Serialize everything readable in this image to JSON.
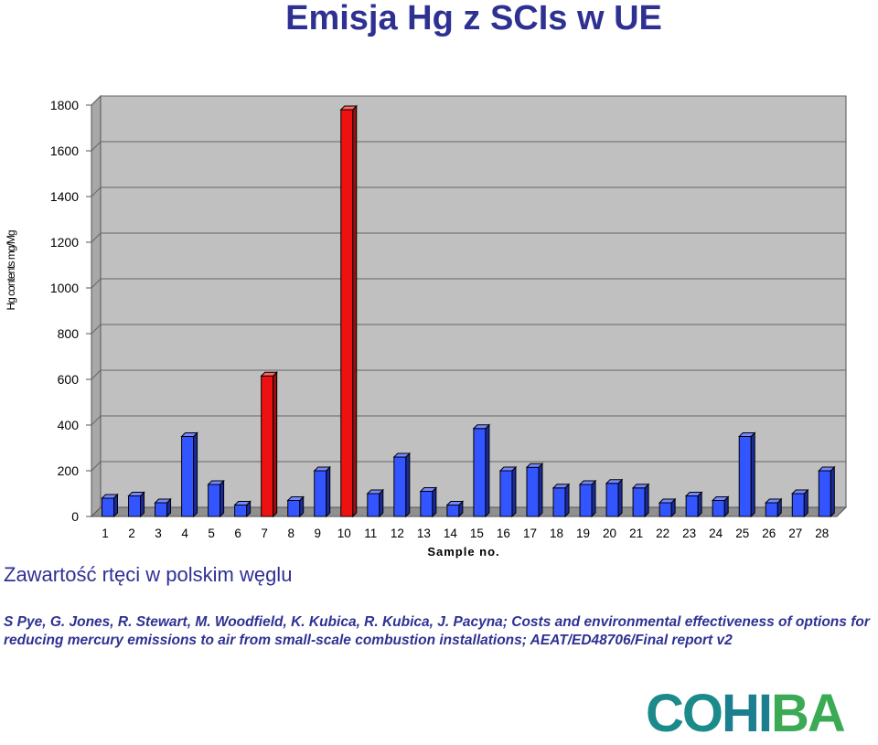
{
  "title": "Emisja Hg z SCIs w UE",
  "subtitle": "Zawartość rtęci w polskim węglu",
  "citation": "S Pye, G. Jones, R. Stewart, M. Woodfield, K. Kubica, R. Kubica, J. Pacyna; Costs and environmental effectiveness of options for reducing mercury emissions to air from small-scale combustion installations; AEAT/ED48706/Final report v2",
  "logo_text": "COHIBA",
  "colors": {
    "title": "#2e3192",
    "bar_default": "#3355ff",
    "bar_highlight": "#ee1111",
    "plot_bg": "#c0c0c0",
    "logo_teal": "#1a8a8a",
    "logo_green": "#3aaa55"
  },
  "chart_data": {
    "type": "bar",
    "title": "",
    "xlabel": "Sample no.",
    "ylabel": "Hg contents mg/Mg",
    "ylim": [
      0,
      1800
    ],
    "yticks": [
      0,
      200,
      400,
      600,
      800,
      1000,
      1200,
      1400,
      1600,
      1800
    ],
    "grid": true,
    "style": "3d",
    "categories": [
      "1",
      "2",
      "3",
      "4",
      "5",
      "6",
      "7",
      "8",
      "9",
      "10",
      "11",
      "12",
      "13",
      "14",
      "15",
      "16",
      "17",
      "18",
      "19",
      "20",
      "21",
      "22",
      "23",
      "24",
      "25",
      "26",
      "27",
      "28"
    ],
    "values": [
      80,
      90,
      60,
      350,
      140,
      50,
      615,
      70,
      200,
      1780,
      100,
      260,
      110,
      50,
      385,
      200,
      215,
      125,
      140,
      145,
      125,
      60,
      90,
      70,
      350,
      60,
      100,
      200
    ],
    "highlighted_categories": [
      "7",
      "10"
    ]
  }
}
